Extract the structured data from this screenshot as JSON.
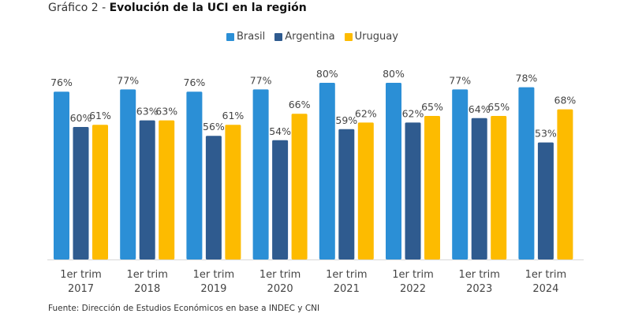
{
  "chart_data": {
    "type": "bar",
    "title_prefix": "Gráfico 2 - ",
    "title": "Evolución de la UCI en la región",
    "categories": [
      [
        "1er trim",
        "2017"
      ],
      [
        "1er trim",
        "2018"
      ],
      [
        "1er trim",
        "2019"
      ],
      [
        "1er trim",
        "2020"
      ],
      [
        "1er trim",
        "2021"
      ],
      [
        "1er trim",
        "2022"
      ],
      [
        "1er trim",
        "2023"
      ],
      [
        "1er trim",
        "2024"
      ]
    ],
    "series": [
      {
        "name": "Brasil",
        "color": "#2b8fd6",
        "values": [
          76,
          77,
          76,
          77,
          80,
          80,
          77,
          78
        ]
      },
      {
        "name": "Argentina",
        "color": "#2f5b8f",
        "values": [
          60,
          63,
          56,
          54,
          59,
          62,
          64,
          53
        ]
      },
      {
        "name": "Uruguay",
        "color": "#fdbb00",
        "values": [
          61,
          63,
          61,
          66,
          62,
          65,
          65,
          68
        ]
      }
    ],
    "value_suffix": "%",
    "ylim": [
      0,
      100
    ],
    "grid": false,
    "legend": "top",
    "source": "Fuente: Dirección de Estudios Económicos en base a INDEC y CNI"
  }
}
